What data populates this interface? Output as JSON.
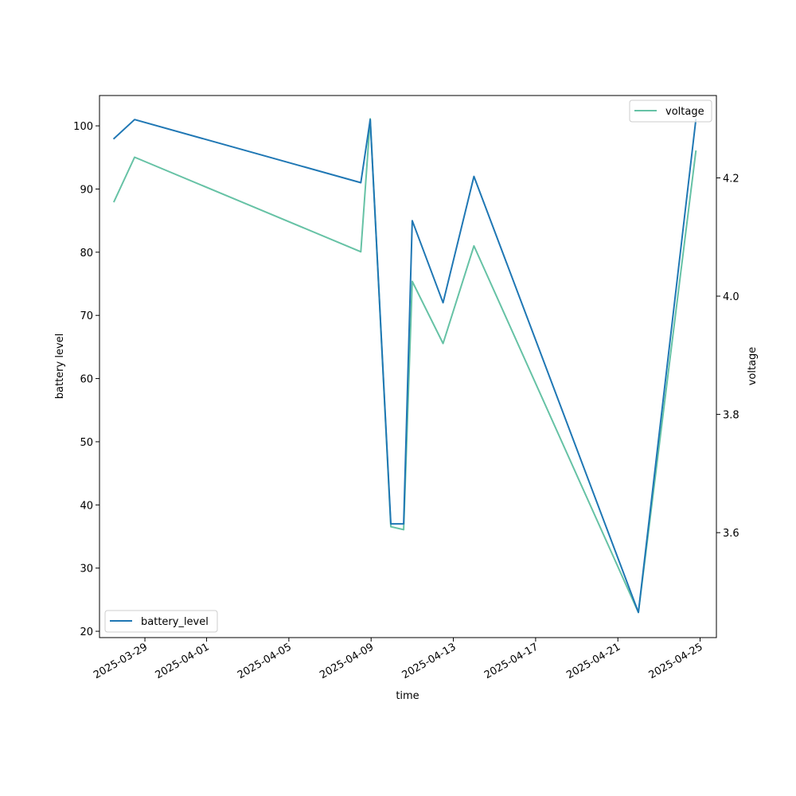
{
  "chart_data": {
    "type": "line",
    "title": "",
    "xlabel": "time",
    "ylabel_left": "battery level",
    "ylabel_right": "voltage",
    "x_ticks": [
      "2025-03-29",
      "2025-04-01",
      "2025-04-05",
      "2025-04-09",
      "2025-04-13",
      "2025-04-17",
      "2025-04-21",
      "2025-04-25"
    ],
    "y_left_ticks": [
      20,
      30,
      40,
      50,
      60,
      70,
      80,
      90,
      100
    ],
    "y_right_ticks": [
      3.6,
      3.8,
      4.0,
      4.2
    ],
    "y_right_tick_labels": [
      "3.6",
      "3.8",
      "4.0",
      "4.2"
    ],
    "xlim": [
      "2025-03-26T19:00",
      "2025-04-25T19:00"
    ],
    "ylim_left": [
      19.0,
      104.8
    ],
    "ylim_right": [
      3.4225,
      4.3393
    ],
    "legend_left_placement": "lower-left",
    "legend_right_placement": "upper-right",
    "grid": false,
    "series": [
      {
        "name": "battery_level",
        "axis": "left",
        "color": "#1f77b4",
        "x": [
          "2025-03-27T12:00",
          "2025-03-28T12:00",
          "2025-04-08T12:00",
          "2025-04-08T23:00",
          "2025-04-09T23:00",
          "2025-04-10T14:00",
          "2025-04-11T00:00",
          "2025-04-12T12:00",
          "2025-04-14T00:00",
          "2025-04-22T00:00",
          "2025-04-24T19:00"
        ],
        "values": [
          98,
          101,
          91,
          101,
          37,
          37,
          85,
          72,
          92,
          23,
          101
        ]
      },
      {
        "name": "voltage",
        "axis": "right",
        "color": "#66c2a5",
        "x": [
          "2025-03-27T12:00",
          "2025-03-28T12:00",
          "2025-04-08T12:00",
          "2025-04-08T23:00",
          "2025-04-09T23:00",
          "2025-04-10T14:00",
          "2025-04-11T00:00",
          "2025-04-12T12:00",
          "2025-04-14T00:00",
          "2025-04-22T00:00",
          "2025-04-24T19:00"
        ],
        "values": [
          4.16,
          4.235,
          4.075,
          4.3,
          3.61,
          3.605,
          4.025,
          3.92,
          4.085,
          3.465,
          4.245
        ]
      }
    ]
  }
}
